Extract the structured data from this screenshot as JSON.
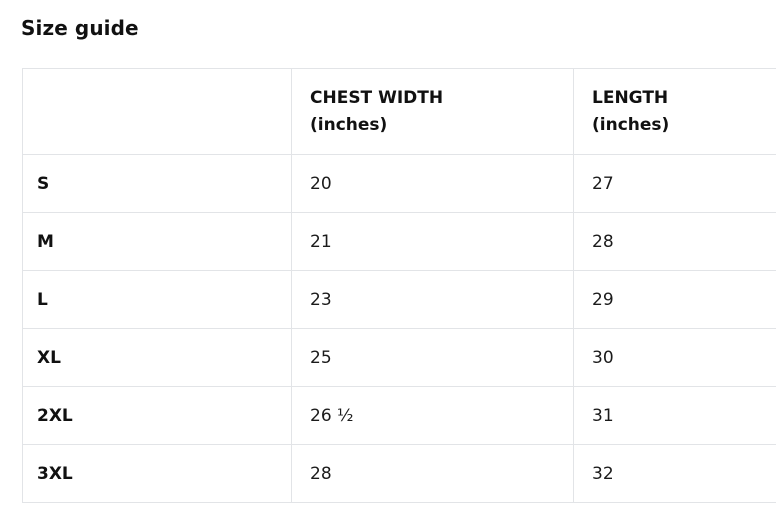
{
  "page": {
    "title": "Size guide"
  },
  "table": {
    "columns": [
      {
        "label": ""
      },
      {
        "label": "CHEST WIDTH\n(inches)"
      },
      {
        "label": "LENGTH\n(inches)"
      }
    ],
    "rows": [
      {
        "size": "S",
        "chest": "20",
        "length": "27"
      },
      {
        "size": "M",
        "chest": "21",
        "length": "28"
      },
      {
        "size": "L",
        "chest": "23",
        "length": "29"
      },
      {
        "size": "XL",
        "chest": "25",
        "length": "30"
      },
      {
        "size": "2XL",
        "chest": "26 ½",
        "length": "31"
      },
      {
        "size": "3XL",
        "chest": "28",
        "length": "32"
      }
    ]
  },
  "colors": {
    "background": "#ffffff",
    "border": "#e2e4e7",
    "text": "#1b1b1b",
    "heading": "#111111"
  }
}
